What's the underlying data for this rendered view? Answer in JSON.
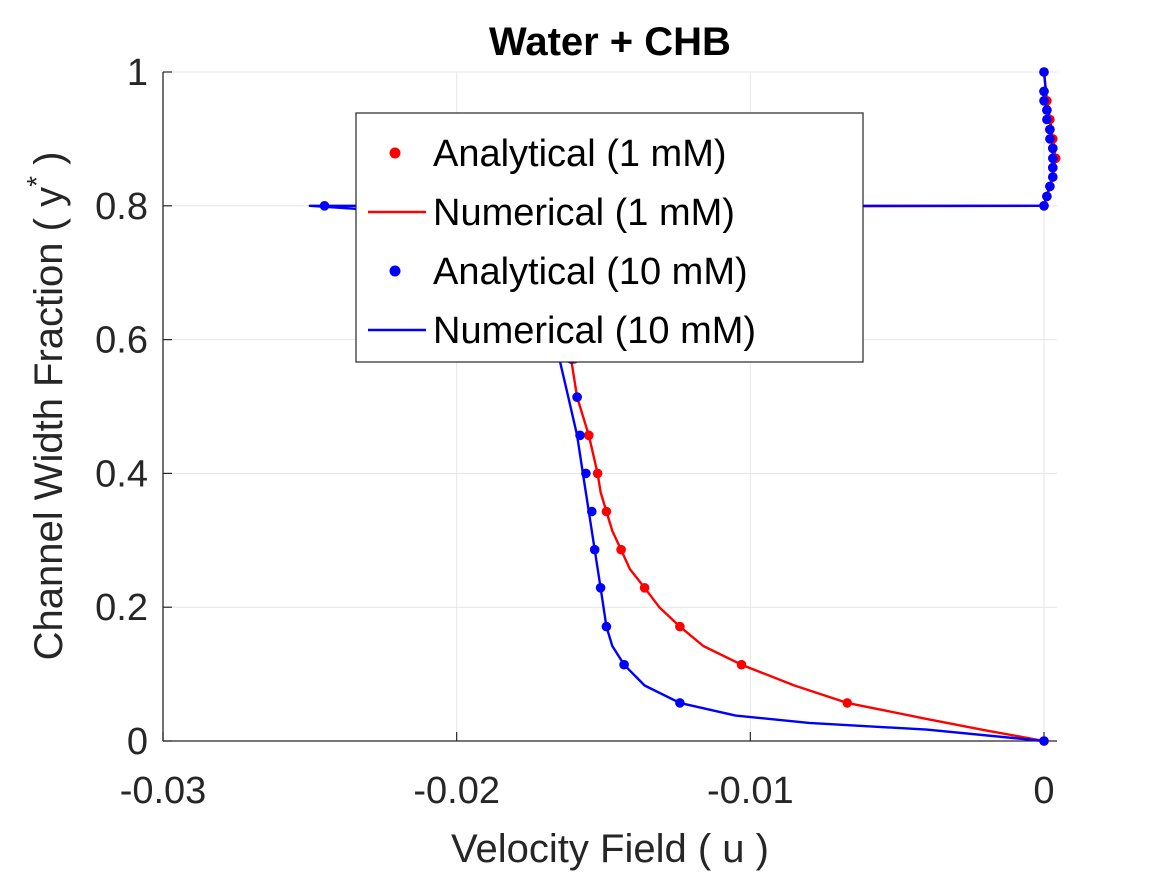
{
  "chart_data": {
    "type": "line",
    "title": "Water + CHB",
    "xlabel": "Velocity Field ( u )",
    "ylabel_main": "Channel Width Fraction ( y",
    "ylabel_sup": "*",
    "ylabel_close": " )",
    "xlim": [
      -0.03,
      0.0004
    ],
    "ylim": [
      0,
      1
    ],
    "x_ticks": [
      -0.03,
      -0.02,
      -0.01,
      0
    ],
    "x_tick_labels": [
      "-0.03",
      "-0.02",
      "-0.01",
      "0"
    ],
    "y_ticks": [
      0,
      0.2,
      0.4,
      0.6,
      0.8,
      1
    ],
    "y_tick_labels": [
      "0",
      "0.2",
      "0.4",
      "0.6",
      "0.8",
      "1"
    ],
    "grid": true,
    "legend_position": "top-center",
    "series": [
      {
        "name": "Analytical (1 mM)",
        "kind": "markers",
        "color": "#ff0000",
        "x": [
          0,
          -0.0067,
          -0.0103,
          -0.0124,
          -0.0136,
          -0.0144,
          -0.0149,
          -0.0152,
          -0.0155,
          -0.0159,
          -0.016,
          -0.0162,
          -0.0163,
          -0.0164,
          -0.0165,
          -0.0165,
          -0.0166,
          -0.0166,
          -0.0166,
          -0.0166,
          -0.0166,
          -0.0165,
          -0.0164,
          -0.016,
          -0.01,
          0,
          0.0001,
          0.0002,
          0.0003,
          0.0003,
          0.0004,
          0.0003,
          0.0003,
          0.0002,
          0.0002,
          0.0001,
          0.0001,
          0,
          0
        ],
        "y": [
          0,
          0.057,
          0.114,
          0.171,
          0.229,
          0.286,
          0.343,
          0.4,
          0.457,
          0.514,
          0.571,
          0.6,
          0.63,
          0.65,
          0.67,
          0.69,
          0.71,
          0.73,
          0.75,
          0.77,
          0.78,
          0.79,
          0.795,
          0.798,
          0.799,
          0.8,
          0.814,
          0.829,
          0.843,
          0.857,
          0.871,
          0.886,
          0.9,
          0.914,
          0.929,
          0.943,
          0.957,
          0.971,
          1.0
        ]
      },
      {
        "name": "Numerical (1 mM)",
        "kind": "line",
        "color": "#ff0000",
        "x": [
          0,
          -0.002,
          -0.004,
          -0.0067,
          -0.0085,
          -0.0103,
          -0.0116,
          -0.0124,
          -0.0131,
          -0.0136,
          -0.0141,
          -0.0144,
          -0.0147,
          -0.0149,
          -0.0151,
          -0.0152,
          -0.0155,
          -0.0159,
          -0.0161,
          -0.0163,
          -0.0165,
          -0.0166,
          -0.0166,
          -0.0164,
          -0.016,
          -0.01,
          0,
          0.0001,
          0.0003,
          0.0004,
          0.0003,
          0.0002,
          0.0001,
          0
        ],
        "y": [
          0,
          0.016,
          0.033,
          0.057,
          0.083,
          0.114,
          0.142,
          0.171,
          0.2,
          0.229,
          0.257,
          0.286,
          0.314,
          0.343,
          0.372,
          0.4,
          0.457,
          0.514,
          0.57,
          0.63,
          0.68,
          0.73,
          0.77,
          0.79,
          0.797,
          0.799,
          0.8,
          0.815,
          0.843,
          0.871,
          0.9,
          0.929,
          0.957,
          1.0
        ]
      },
      {
        "name": "Analytical (10 mM)",
        "kind": "markers",
        "color": "#0000ff",
        "x": [
          0,
          -0.0124,
          -0.0143,
          -0.0149,
          -0.0151,
          -0.0153,
          -0.0154,
          -0.0156,
          -0.0158,
          -0.0159,
          -0.0161,
          -0.0163,
          -0.0164,
          -0.0165,
          -0.0166,
          -0.0167,
          -0.0168,
          -0.017,
          -0.0178,
          -0.02,
          -0.0245,
          0,
          0.0001,
          0.0002,
          0.0003,
          0.0003,
          0.0003,
          0.0003,
          0.0002,
          0.0002,
          0.0001,
          0.0001,
          0,
          0,
          0
        ],
        "y": [
          0,
          0.057,
          0.114,
          0.171,
          0.229,
          0.286,
          0.343,
          0.4,
          0.457,
          0.514,
          0.571,
          0.62,
          0.66,
          0.7,
          0.73,
          0.76,
          0.78,
          0.79,
          0.796,
          0.799,
          0.8,
          0.8,
          0.814,
          0.829,
          0.843,
          0.857,
          0.871,
          0.886,
          0.9,
          0.914,
          0.929,
          0.943,
          0.957,
          0.971,
          1.0
        ]
      },
      {
        "name": "Numerical (10 mM)",
        "kind": "line",
        "color": "#0000ff",
        "x": [
          0,
          -0.004,
          -0.008,
          -0.0105,
          -0.0124,
          -0.0136,
          -0.0143,
          -0.0147,
          -0.0149,
          -0.0151,
          -0.0153,
          -0.0155,
          -0.0157,
          -0.0159,
          -0.0162,
          -0.0165,
          -0.0168,
          -0.0171,
          -0.0185,
          -0.0215,
          -0.025,
          -0.02,
          -0.01,
          0,
          0.0001,
          0.0003,
          0.0003,
          0.0002,
          0.0001,
          0
        ],
        "y": [
          0,
          0.017,
          0.027,
          0.038,
          0.057,
          0.083,
          0.114,
          0.142,
          0.171,
          0.229,
          0.286,
          0.343,
          0.4,
          0.457,
          0.514,
          0.571,
          0.63,
          0.69,
          0.75,
          0.79,
          0.8,
          0.8,
          0.8,
          0.8,
          0.815,
          0.843,
          0.886,
          0.929,
          0.957,
          1.0
        ]
      }
    ]
  }
}
